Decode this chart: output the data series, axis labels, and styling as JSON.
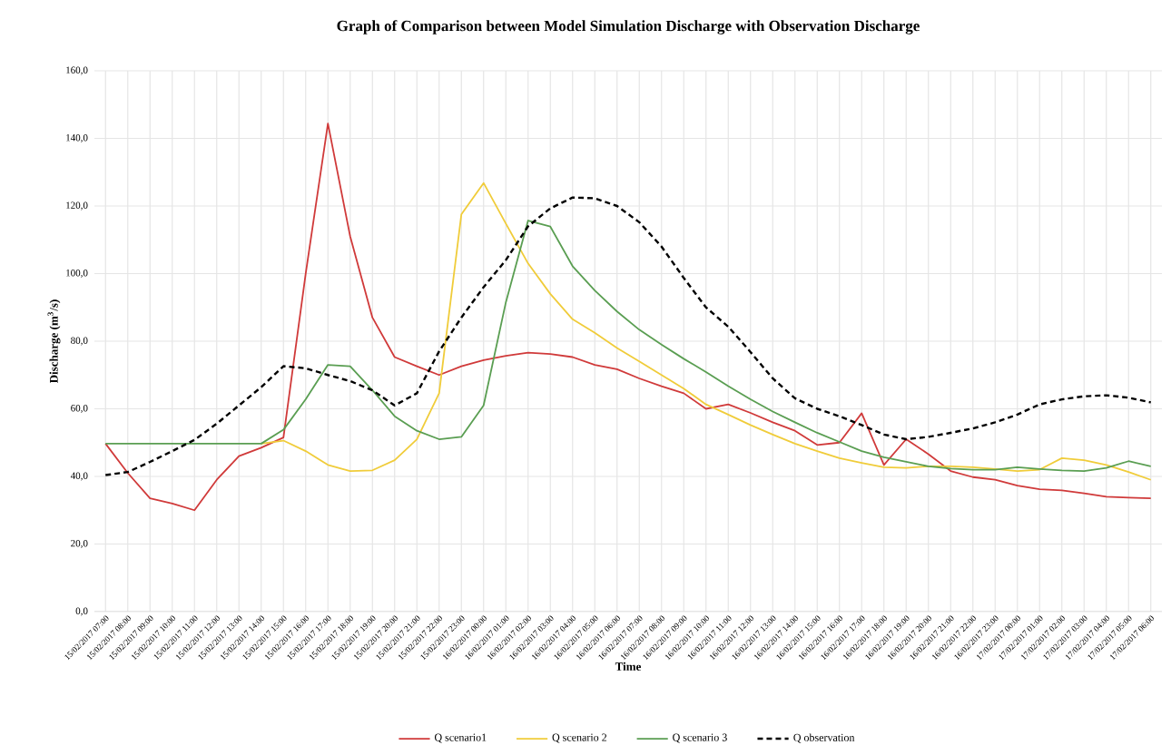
{
  "chart_data": {
    "type": "line",
    "title": "Graph of Comparison between Model Simulation  Discharge with Observation Discharge",
    "xlabel": "Time",
    "ylabel": "Discharge (m$^{3}$/s)",
    "categories": [
      "15/02/2017 07:00",
      "15/02/2017 08:00",
      "15/02/2017 09:00",
      "15/02/2017 10:00",
      "15/02/2017 11:00",
      "15/02/2017 12:00",
      "15/02/2017 13:00",
      "15/02/2017 14:00",
      "15/02/2017 15:00",
      "15/02/2017 16:00",
      "15/02/2017 17:00",
      "15/02/2017 18:00",
      "15/02/2017 19:00",
      "15/02/2017 20:00",
      "15/02/2017 21:00",
      "15/02/2017 22:00",
      "15/02/2017 23:00",
      "16/02/2017 00:00",
      "16/02/2017 01:00",
      "16/02/2017 02:00",
      "16/02/2017 03:00",
      "16/02/2017 04:00",
      "16/02/2017 05:00",
      "16/02/2017 06:00",
      "16/02/2017 07:00",
      "16/02/2017 08:00",
      "16/02/2017 09:00",
      "16/02/2017 10:00",
      "16/02/2017 11:00",
      "16/02/2017 12:00",
      "16/02/2017 13:00",
      "16/02/2017 14:00",
      "16/02/2017 15:00",
      "16/02/2017 16:00",
      "16/02/2017 17:00",
      "16/02/2017 18:00",
      "16/02/2017 19:00",
      "16/02/2017 20:00",
      "16/02/2017 21:00",
      "16/02/2017 22:00",
      "16/02/2017 23:00",
      "17/02/2017 00:00",
      "17/02/2017 01:00",
      "17/02/2017 02:00",
      "17/02/2017 03:00",
      "17/02/2017 04:00",
      "17/02/2017 05:00",
      "17/02/2017 06:00"
    ],
    "series": [
      {
        "name": "Q scenario1",
        "color": "#d03a3a",
        "values": [
          49.7,
          41,
          33.5,
          32,
          30,
          39,
          46,
          48.5,
          51.5,
          100,
          144.4,
          111,
          87,
          75.3,
          72.6,
          70,
          72.6,
          74.4,
          75.7,
          76.6,
          76.2,
          75.3,
          73,
          71.7,
          69,
          66.7,
          64.6,
          60,
          61.3,
          58.8,
          56,
          53.5,
          49.3,
          50,
          58.7,
          43.4,
          51,
          46.6,
          41.6,
          39.8,
          39,
          37.3,
          36.2,
          35.9,
          35,
          34,
          33.7,
          33.5
        ]
      },
      {
        "name": "Q scenario 2",
        "color": "#f0cc3a",
        "values": [
          null,
          null,
          null,
          null,
          null,
          null,
          null,
          49.7,
          50.6,
          47.5,
          43.4,
          41.6,
          41.8,
          44.8,
          51,
          64.6,
          117.5,
          126.8,
          114.8,
          103,
          94,
          86.5,
          82.5,
          78,
          74,
          70,
          66,
          61.3,
          58.3,
          55.2,
          52.4,
          49.7,
          47.5,
          45.4,
          44,
          42.7,
          42.5,
          43,
          43,
          42.7,
          42.2,
          41.6,
          42,
          45.4,
          44.8,
          43.4,
          41.3,
          39
        ]
      },
      {
        "name": "Q scenario 3",
        "color": "#5a9e52",
        "values": [
          49.7,
          49.7,
          49.7,
          49.7,
          49.7,
          49.7,
          49.7,
          49.7,
          53.8,
          62.8,
          73,
          72.6,
          65.5,
          57.8,
          53.5,
          51,
          51.7,
          61,
          91.5,
          115.7,
          113.9,
          102.2,
          95,
          88.8,
          83.4,
          79,
          74.8,
          70.9,
          66.7,
          62.8,
          59.2,
          56,
          52.9,
          50.2,
          47.5,
          45.7,
          44.3,
          43,
          42.3,
          42,
          42,
          42.7,
          42.2,
          41.8,
          41.6,
          42.5,
          44.5,
          43
        ]
      },
      {
        "name": "Q observation",
        "color": "#000000",
        "line_style": "dashed",
        "values": [
          40.4,
          41.3,
          44.3,
          47.5,
          50.8,
          55.6,
          61,
          66.4,
          72.6,
          72,
          70,
          68.2,
          65.5,
          61,
          64.6,
          77,
          87,
          96,
          104,
          114,
          119.3,
          122.5,
          122.3,
          120,
          115.2,
          108,
          98.7,
          90,
          84.3,
          76.8,
          69,
          63.1,
          60,
          57.8,
          55.2,
          52.4,
          51,
          51.7,
          52.9,
          54.2,
          56,
          58.3,
          61.3,
          62.8,
          63.7,
          64,
          63.3,
          61.9
        ]
      }
    ],
    "ylim": [
      0,
      160
    ],
    "yticks": [
      {
        "value": 0,
        "label": "0,0"
      },
      {
        "value": 20,
        "label": "20,0"
      },
      {
        "value": 40,
        "label": "40,0"
      },
      {
        "value": 60,
        "label": "60,0"
      },
      {
        "value": 80,
        "label": "80,0"
      },
      {
        "value": 100,
        "label": "100,0"
      },
      {
        "value": 120,
        "label": "120,0"
      },
      {
        "value": 140,
        "label": "140,0"
      },
      {
        "value": 160,
        "label": "160,0"
      }
    ],
    "grid": true,
    "legend": "bottom",
    "marker": "none",
    "line_style": "solid"
  }
}
